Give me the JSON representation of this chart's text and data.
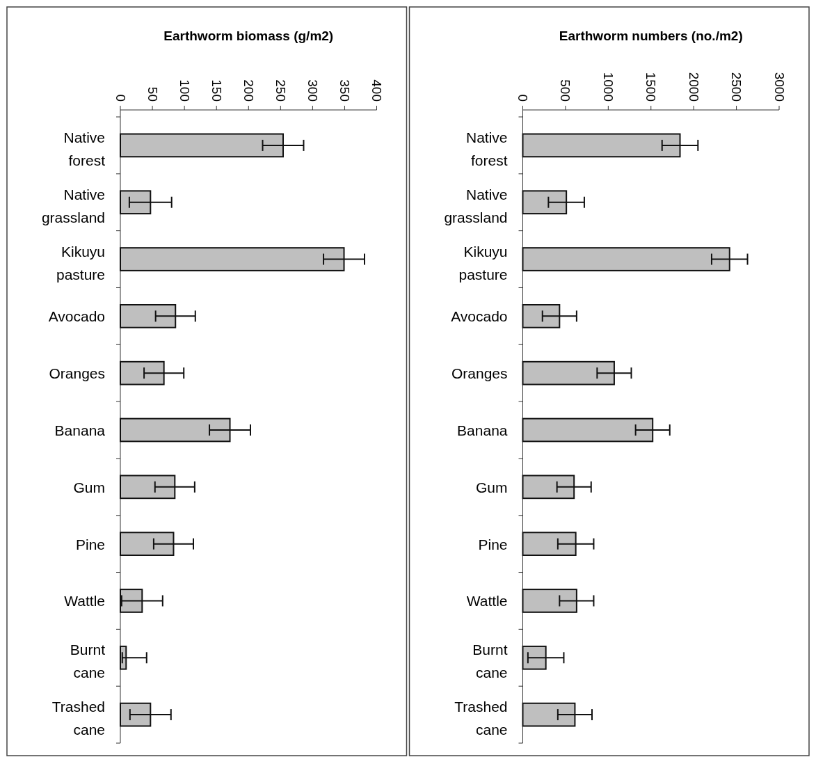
{
  "chart_data": [
    {
      "type": "bar",
      "orientation": "horizontal",
      "title": "Earthworm biomass (g/m2)",
      "categories": [
        "Native forest",
        "Native grassland",
        "Kikuyu pasture",
        "Avocado",
        "Oranges",
        "Banana",
        "Gum",
        "Pine",
        "Wattle",
        "Burnt cane",
        "Trashed cane"
      ],
      "values": [
        254,
        47,
        349,
        86,
        68,
        171,
        85,
        83,
        34,
        9,
        47
      ],
      "errors": [
        32,
        33,
        32,
        31,
        31,
        32,
        31,
        31,
        [
          2,
          66
        ],
        [
          3,
          41
        ],
        32
      ],
      "color": "#bfbfbf",
      "xlim": [
        0,
        400
      ],
      "xticks": [
        0,
        50,
        100,
        150,
        200,
        250,
        300,
        350,
        400
      ]
    },
    {
      "type": "bar",
      "orientation": "horizontal",
      "title": "Earthworm numbers (no./m2)",
      "categories": [
        "Native forest",
        "Native grassland",
        "Kikuyu pasture",
        "Avocado",
        "Oranges",
        "Banana",
        "Gum",
        "Pine",
        "Wattle",
        "Burnt cane",
        "Trashed cane"
      ],
      "values": [
        1840,
        510,
        2420,
        430,
        1070,
        1520,
        600,
        620,
        630,
        270,
        610
      ],
      "errors": [
        210,
        210,
        210,
        200,
        200,
        200,
        200,
        210,
        200,
        210,
        200
      ],
      "color": "#bfbfbf",
      "xlim": [
        0,
        3000
      ],
      "xticks": [
        0,
        500,
        1000,
        1500,
        2000,
        2500,
        3000
      ]
    }
  ]
}
